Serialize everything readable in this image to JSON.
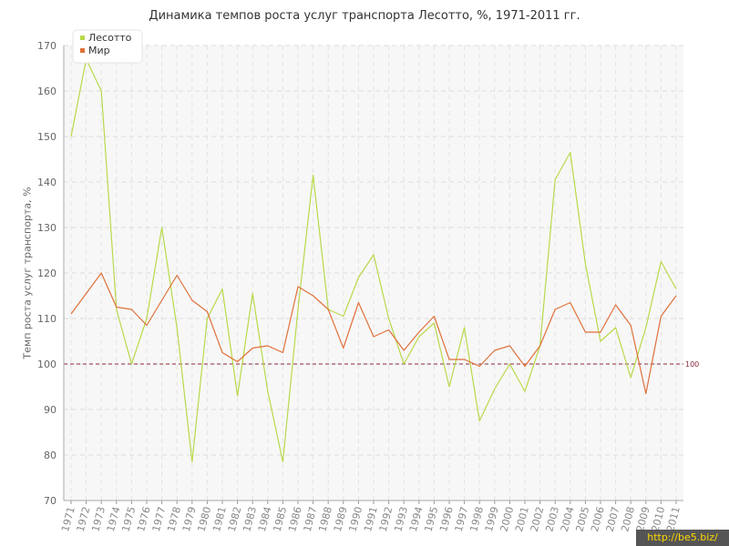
{
  "chart_data": {
    "type": "line",
    "title": "Динамика темпов роста услуг транспорта Лесотто, %, 1971-2011 гг.",
    "xlabel": "",
    "ylabel": "Темп роста услуг транспорта, %",
    "ylim": [
      70,
      170
    ],
    "yticks": [
      70,
      80,
      90,
      100,
      110,
      120,
      130,
      140,
      150,
      160,
      170
    ],
    "x": [
      "1971",
      "1972",
      "1973",
      "1974",
      "1975",
      "1976",
      "1977",
      "1978",
      "1979",
      "1980",
      "1981",
      "1982",
      "1983",
      "1984",
      "1985",
      "1986",
      "1987",
      "1988",
      "1989",
      "1990",
      "1991",
      "1992",
      "1993",
      "1994",
      "1995",
      "1996",
      "1997",
      "1998",
      "1999",
      "2000",
      "2001",
      "2002",
      "2003",
      "2004",
      "2005",
      "2006",
      "2007",
      "2008",
      "2009",
      "2010",
      "2011"
    ],
    "series": [
      {
        "name": "Лесотто",
        "color": "#b8d94a",
        "values": [
          150,
          167,
          160,
          112,
          100,
          110,
          130,
          108,
          78.5,
          110,
          116.5,
          93,
          115.5,
          94,
          78.5,
          112,
          141.5,
          112,
          110.5,
          119,
          124,
          110,
          100,
          106,
          109,
          95,
          108,
          87.5,
          94.5,
          100,
          94,
          104,
          140.5,
          146.5,
          122,
          105,
          108,
          97,
          108,
          122.5,
          116.5
        ]
      },
      {
        "name": "Мир",
        "color": "#e0703a",
        "values": [
          111,
          115.5,
          120,
          112.5,
          112,
          108.5,
          114,
          119.5,
          114,
          111.5,
          102.5,
          100.5,
          103.5,
          104,
          102.5,
          117,
          115,
          112,
          103.5,
          113.5,
          106,
          107.5,
          103,
          107,
          110.5,
          101,
          101,
          99.5,
          103,
          104,
          99.5,
          104,
          112,
          113.5,
          107,
          107,
          113,
          108.5,
          93.5,
          110.5,
          115
        ]
      }
    ],
    "reference_line": {
      "value": 100,
      "label": "100",
      "color": "#8b2a3a"
    },
    "grid": true,
    "legend": "top-left"
  },
  "watermark": "http://be5.biz/"
}
